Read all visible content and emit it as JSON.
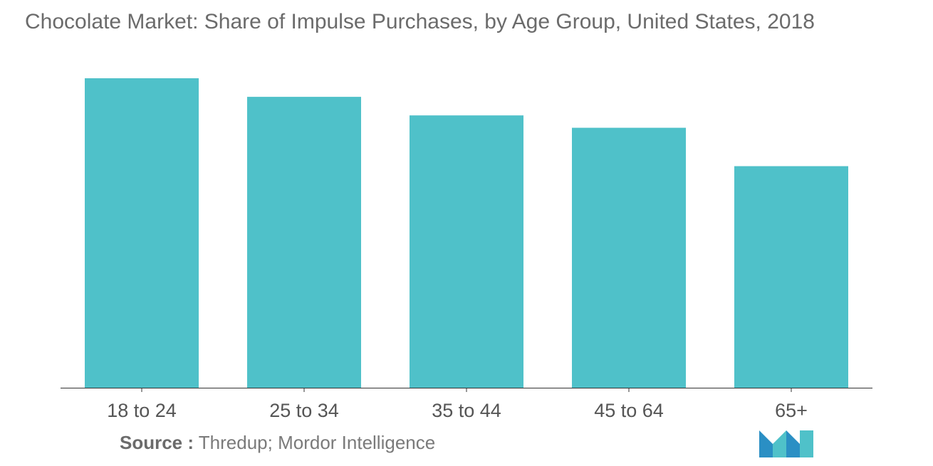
{
  "title": "Chocolate Market: Share of Impulse Purchases, by Age Group, United States, 2018",
  "source": {
    "label": "Source :",
    "text": "Thredup; Mordor Intelligence"
  },
  "logo": {
    "icon": "mordor-intelligence-logo"
  },
  "colors": {
    "bar": "#4fc1c9",
    "axis": "#333333",
    "text": "#6b6b6b"
  },
  "chart_data": {
    "type": "bar",
    "title": "Chocolate Market: Share of Impulse Purchases, by Age Group, United States, 2018",
    "categories": [
      "18 to 24",
      "25 to 34",
      "35 to 44",
      "45 to 64",
      "65+"
    ],
    "values": [
      100,
      94,
      88,
      84,
      71.6
    ],
    "xlabel": "",
    "ylabel": "",
    "ylim": [
      0,
      100
    ],
    "grid": false,
    "legend": "none"
  }
}
